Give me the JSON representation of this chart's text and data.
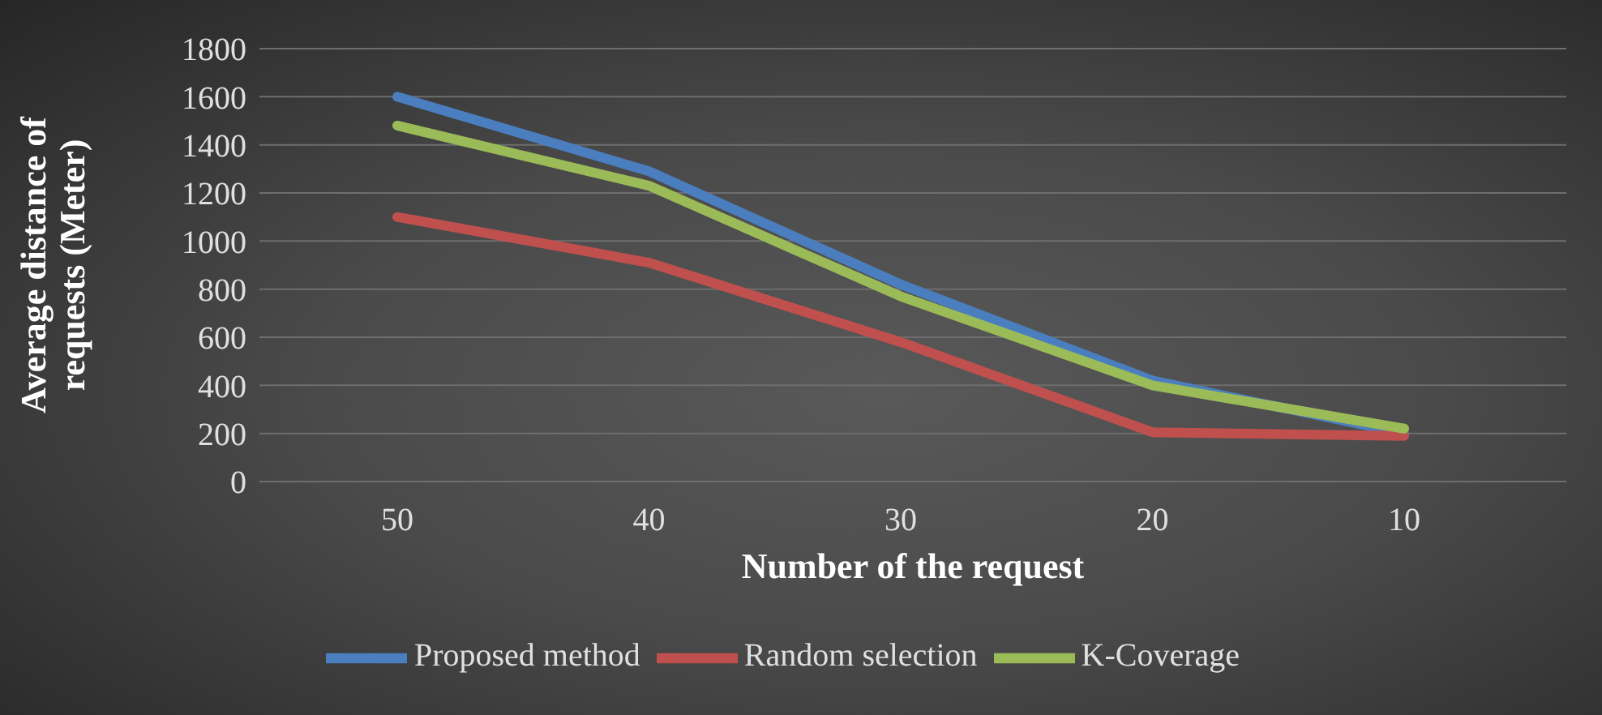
{
  "chart_data": {
    "type": "line",
    "xlabel": "Number of the request",
    "ylabel": "Average distance of requests (Meter)",
    "categories": [
      "50",
      "40",
      "30",
      "20",
      "10"
    ],
    "series": [
      {
        "name": "Proposed method",
        "color": "#4a7ebf",
        "values": [
          1600,
          1290,
          820,
          420,
          200
        ]
      },
      {
        "name": "Random selection",
        "color": "#c0504d",
        "values": [
          1100,
          910,
          580,
          205,
          190
        ]
      },
      {
        "name": "K-Coverage",
        "color": "#9bbb59",
        "values": [
          1480,
          1230,
          770,
          400,
          220
        ]
      }
    ],
    "ylim": [
      0,
      1800
    ],
    "yticks": [
      0,
      200,
      400,
      600,
      800,
      1000,
      1200,
      1400,
      1600,
      1800
    ],
    "grid": "y",
    "legend": "bottom",
    "marker": "none",
    "line_style": "solid"
  }
}
